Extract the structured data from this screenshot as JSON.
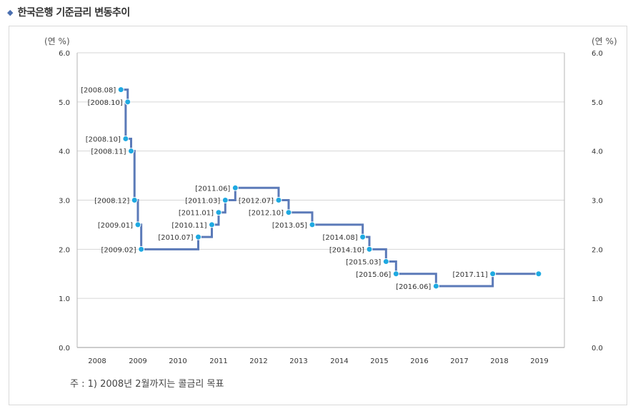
{
  "header": {
    "title": "한국은행 기준금리 변동추이"
  },
  "note": "주 : 1) 2008년 2월까지는 콜금리 목표",
  "colors": {
    "line": "#5b7ab8",
    "point": "#1fa9e1",
    "grid": "#d6d6d6",
    "bullet": "#4a6fb0"
  },
  "chart_data": {
    "type": "line",
    "step": true,
    "left_unit": "(연 %)",
    "right_unit": "(연 %)",
    "ylim": [
      0,
      6
    ],
    "yticks": [
      "0.0",
      "1.0",
      "2.0",
      "3.0",
      "4.0",
      "5.0",
      "6.0"
    ],
    "xticks": [
      "2008",
      "2009",
      "2010",
      "2011",
      "2012",
      "2013",
      "2014",
      "2015",
      "2016",
      "2017",
      "2018",
      "2019"
    ],
    "grid": "horizontal",
    "series": [
      {
        "points": [
          {
            "date": "2008.08",
            "value": 5.25
          },
          {
            "date": "2008.10",
            "value": 5.0
          },
          {
            "date": "2008.10",
            "value": 4.25
          },
          {
            "date": "2008.11",
            "value": 4.0
          },
          {
            "date": "2008.12",
            "value": 3.0
          },
          {
            "date": "2009.01",
            "value": 2.5
          },
          {
            "date": "2009.02",
            "value": 2.0
          },
          {
            "date": "2010.07",
            "value": 2.25
          },
          {
            "date": "2010.11",
            "value": 2.5
          },
          {
            "date": "2011.01",
            "value": 2.75
          },
          {
            "date": "2011.03",
            "value": 3.0
          },
          {
            "date": "2011.06",
            "value": 3.25
          },
          {
            "date": "2012.07",
            "value": 3.0
          },
          {
            "date": "2012.10",
            "value": 2.75
          },
          {
            "date": "2013.05",
            "value": 2.5
          },
          {
            "date": "2014.08",
            "value": 2.25
          },
          {
            "date": "2014.10",
            "value": 2.0
          },
          {
            "date": "2015.03",
            "value": 1.75
          },
          {
            "date": "2015.06",
            "value": 1.5
          },
          {
            "date": "2016.06",
            "value": 1.25
          },
          {
            "date": "2017.11",
            "value": 1.5
          },
          {
            "date": "",
            "value": 1.5
          }
        ]
      }
    ]
  }
}
